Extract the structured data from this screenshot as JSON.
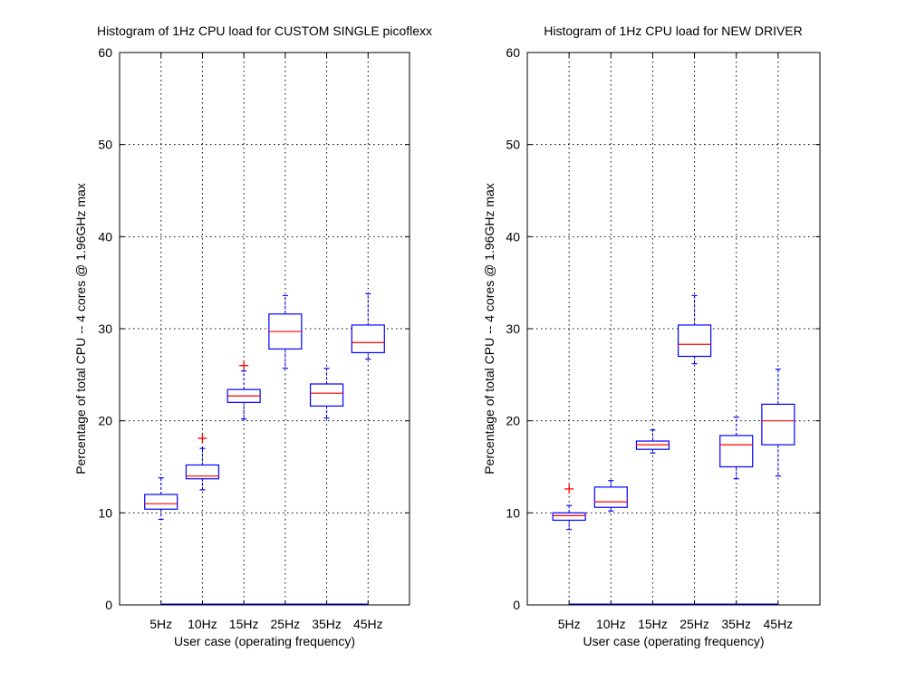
{
  "chart_data": [
    {
      "type": "box",
      "title": "Histogram of 1Hz CPU load for CUSTOM SINGLE picoflexx",
      "xlabel": "User case (operating frequency)",
      "ylabel": "Percentage of total CPU -- 4 cores @ 1.96GHz max",
      "ylim": [
        0,
        60
      ],
      "yticks": [
        "0",
        "10",
        "20",
        "30",
        "40",
        "50",
        "60"
      ],
      "categories": [
        "5Hz",
        "10Hz",
        "15Hz",
        "25Hz",
        "35Hz",
        "45Hz"
      ],
      "grid": true,
      "boxes": [
        {
          "label": "5Hz",
          "whisker_low": 9.3,
          "q1": 10.4,
          "median": 11.0,
          "q3": 12.0,
          "whisker_high": 13.8,
          "outliers": []
        },
        {
          "label": "10Hz",
          "whisker_low": 12.5,
          "q1": 13.7,
          "median": 14.0,
          "q3": 15.2,
          "whisker_high": 17.0,
          "outliers": [
            18.1
          ]
        },
        {
          "label": "15Hz",
          "whisker_low": 20.2,
          "q1": 22.0,
          "median": 22.7,
          "q3": 23.4,
          "whisker_high": 25.4,
          "outliers": [
            26.0
          ]
        },
        {
          "label": "25Hz",
          "whisker_low": 25.7,
          "q1": 27.8,
          "median": 29.7,
          "q3": 31.6,
          "whisker_high": 33.6,
          "outliers": []
        },
        {
          "label": "35Hz",
          "whisker_low": 20.3,
          "q1": 21.6,
          "median": 23.0,
          "q3": 24.0,
          "whisker_high": 25.7,
          "outliers": []
        },
        {
          "label": "45Hz",
          "whisker_low": 26.7,
          "q1": 27.4,
          "median": 28.5,
          "q3": 30.4,
          "whisker_high": 33.8,
          "outliers": []
        }
      ],
      "colors": {
        "box": "#0000ff",
        "median": "#ff0000",
        "outlier": "#ff0000",
        "grid": "#000000"
      }
    },
    {
      "type": "box",
      "title": "Histogram of 1Hz CPU load for NEW DRIVER",
      "xlabel": "User case (operating frequency)",
      "ylabel": "Percentage of total CPU -- 4 cores @ 1.96GHz max",
      "ylim": [
        0,
        60
      ],
      "yticks": [
        "0",
        "10",
        "20",
        "30",
        "40",
        "50",
        "60"
      ],
      "categories": [
        "5Hz",
        "10Hz",
        "15Hz",
        "25Hz",
        "35Hz",
        "45Hz"
      ],
      "grid": true,
      "boxes": [
        {
          "label": "5Hz",
          "whisker_low": 8.2,
          "q1": 9.2,
          "median": 9.7,
          "q3": 10.0,
          "whisker_high": 10.8,
          "outliers": [
            12.6
          ]
        },
        {
          "label": "10Hz",
          "whisker_low": 10.2,
          "q1": 10.6,
          "median": 11.2,
          "q3": 12.8,
          "whisker_high": 13.5,
          "outliers": []
        },
        {
          "label": "15Hz",
          "whisker_low": 16.5,
          "q1": 16.9,
          "median": 17.4,
          "q3": 17.8,
          "whisker_high": 19.0,
          "outliers": []
        },
        {
          "label": "25Hz",
          "whisker_low": 26.2,
          "q1": 27.0,
          "median": 28.3,
          "q3": 30.4,
          "whisker_high": 33.6,
          "outliers": []
        },
        {
          "label": "35Hz",
          "whisker_low": 13.7,
          "q1": 15.0,
          "median": 17.4,
          "q3": 18.4,
          "whisker_high": 20.4,
          "outliers": []
        },
        {
          "label": "45Hz",
          "whisker_low": 14.0,
          "q1": 17.4,
          "median": 20.0,
          "q3": 21.8,
          "whisker_high": 25.6,
          "outliers": []
        }
      ],
      "colors": {
        "box": "#0000ff",
        "median": "#ff0000",
        "outlier": "#ff0000",
        "grid": "#000000"
      }
    }
  ]
}
